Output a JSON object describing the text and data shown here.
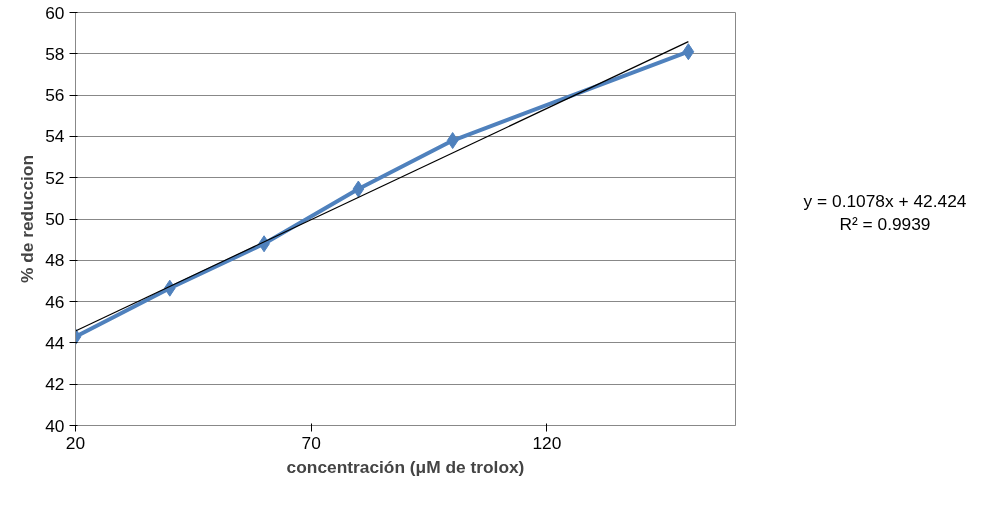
{
  "chart_data": {
    "type": "line",
    "xlabel": "concentración (μM de trolox)",
    "ylabel": "% de reduccion",
    "xlim": [
      20,
      160
    ],
    "xticks": [
      20,
      70,
      120
    ],
    "ylim": [
      40,
      60
    ],
    "yticks": [
      40,
      42,
      44,
      46,
      48,
      50,
      52,
      54,
      56,
      58,
      60
    ],
    "grid": "y",
    "series": [
      {
        "color": "#4f81bd",
        "marker": "diamond",
        "x": [
          20,
          40,
          60,
          80,
          100,
          150
        ],
        "values": [
          44.3,
          46.65,
          48.8,
          51.45,
          53.8,
          58.1
        ]
      },
      {
        "type": "line",
        "color": "#000000",
        "marker": "none",
        "x": [
          20,
          150
        ],
        "values": [
          44.58,
          58.59
        ]
      }
    ],
    "annotations": [
      "y = 0.1078x + 42.424",
      "R² = 0.9939"
    ]
  }
}
